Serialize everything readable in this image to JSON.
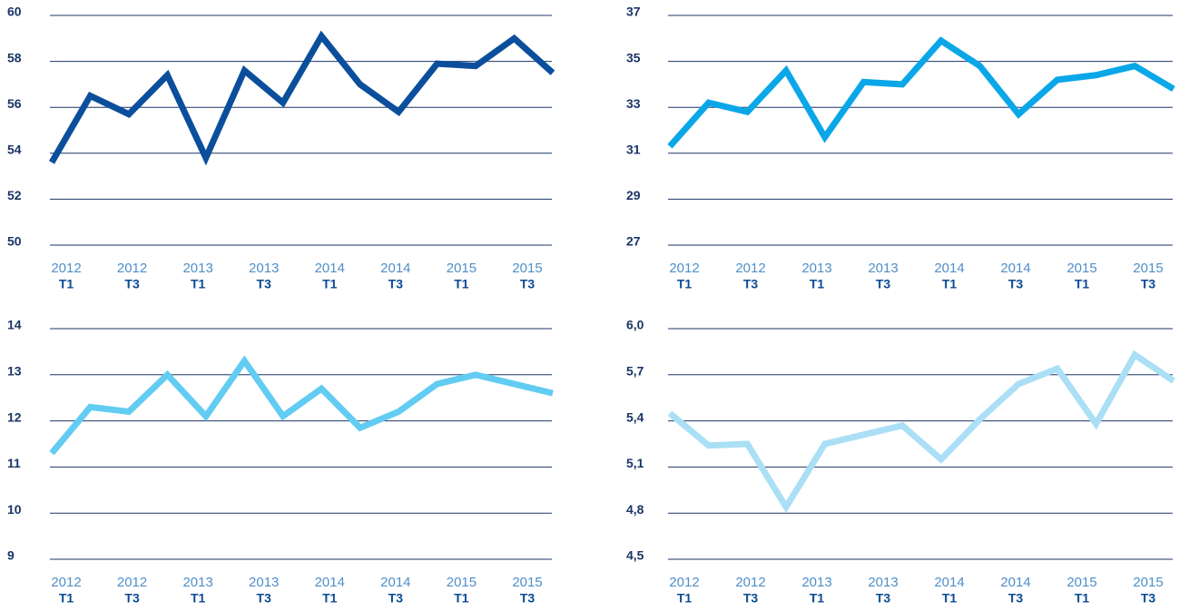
{
  "chart_data": [
    {
      "type": "line",
      "color": "#0b4f9c",
      "ylim": [
        50,
        60
      ],
      "yticks": [
        50,
        52,
        54,
        56,
        58,
        60
      ],
      "grid": true,
      "x_labels": [
        {
          "year": "2012",
          "quarter": "T1"
        },
        {
          "year": "2012",
          "quarter": "T3"
        },
        {
          "year": "2013",
          "quarter": "T1"
        },
        {
          "year": "2013",
          "quarter": "T3"
        },
        {
          "year": "2014",
          "quarter": "T1"
        },
        {
          "year": "2014",
          "quarter": "T3"
        },
        {
          "year": "2015",
          "quarter": "T1"
        },
        {
          "year": "2015",
          "quarter": "T3"
        }
      ],
      "values": [
        53.6,
        56.5,
        55.7,
        57.4,
        53.8,
        57.6,
        56.2,
        59.1,
        57.0,
        55.8,
        57.9,
        57.8,
        59.0,
        57.5
      ]
    },
    {
      "type": "line",
      "color": "#0aa7e8",
      "ylim": [
        27,
        37
      ],
      "yticks": [
        27,
        29,
        31,
        33,
        35,
        37
      ],
      "grid": true,
      "x_labels": [
        {
          "year": "2012",
          "quarter": "T1"
        },
        {
          "year": "2012",
          "quarter": "T3"
        },
        {
          "year": "2013",
          "quarter": "T1"
        },
        {
          "year": "2013",
          "quarter": "T3"
        },
        {
          "year": "2014",
          "quarter": "T1"
        },
        {
          "year": "2014",
          "quarter": "T3"
        },
        {
          "year": "2015",
          "quarter": "T1"
        },
        {
          "year": "2015",
          "quarter": "T3"
        }
      ],
      "values": [
        31.3,
        33.2,
        32.8,
        34.6,
        31.7,
        34.1,
        34.0,
        35.9,
        34.8,
        32.7,
        34.2,
        34.4,
        34.8,
        33.8
      ]
    },
    {
      "type": "line",
      "color": "#62ccf2",
      "ylim": [
        9,
        14
      ],
      "yticks": [
        9,
        10,
        11,
        12,
        13,
        14
      ],
      "grid": true,
      "x_labels": [
        {
          "year": "2012",
          "quarter": "T1"
        },
        {
          "year": "2012",
          "quarter": "T3"
        },
        {
          "year": "2013",
          "quarter": "T1"
        },
        {
          "year": "2013",
          "quarter": "T3"
        },
        {
          "year": "2014",
          "quarter": "T1"
        },
        {
          "year": "2014",
          "quarter": "T3"
        },
        {
          "year": "2015",
          "quarter": "T1"
        },
        {
          "year": "2015",
          "quarter": "T3"
        }
      ],
      "values": [
        11.3,
        12.3,
        12.2,
        13.0,
        12.1,
        13.3,
        12.1,
        12.7,
        11.85,
        12.2,
        12.8,
        13.0,
        12.8,
        12.6
      ]
    },
    {
      "type": "line",
      "color": "#aadff6",
      "ylim": [
        4.5,
        6.0
      ],
      "yticks": [
        {
          "value": 4.5,
          "label": "4,5"
        },
        {
          "value": 4.8,
          "label": "4,8"
        },
        {
          "value": 5.1,
          "label": "5,1"
        },
        {
          "value": 5.4,
          "label": "5,4"
        },
        {
          "value": 5.7,
          "label": "5,7"
        },
        {
          "value": 6.0,
          "label": "6,0"
        }
      ],
      "grid": true,
      "x_labels": [
        {
          "year": "2012",
          "quarter": "T1"
        },
        {
          "year": "2012",
          "quarter": "T3"
        },
        {
          "year": "2013",
          "quarter": "T1"
        },
        {
          "year": "2013",
          "quarter": "T3"
        },
        {
          "year": "2014",
          "quarter": "T1"
        },
        {
          "year": "2014",
          "quarter": "T3"
        },
        {
          "year": "2015",
          "quarter": "T1"
        },
        {
          "year": "2015",
          "quarter": "T3"
        }
      ],
      "values": [
        5.45,
        5.24,
        5.25,
        4.84,
        5.25,
        5.31,
        5.37,
        5.15,
        5.41,
        5.64,
        5.74,
        5.38,
        5.83,
        5.66
      ]
    }
  ]
}
